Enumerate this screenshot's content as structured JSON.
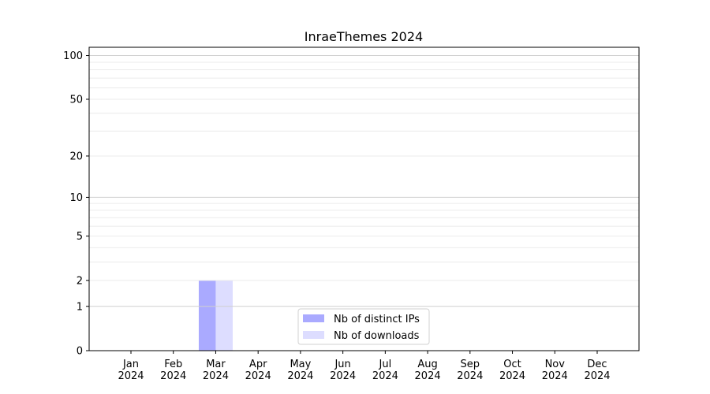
{
  "chart_data": {
    "type": "bar",
    "title": "InraeThemes 2024",
    "xlabel": "",
    "ylabel": "",
    "yscale": "log(1+y)",
    "ylim": [
      0,
      114
    ],
    "yticks": [
      0,
      1,
      2,
      5,
      10,
      20,
      50,
      100
    ],
    "grid": true,
    "legend_position": "lower-center",
    "categories": [
      "Jan\n2024",
      "Feb\n2024",
      "Mar\n2024",
      "Apr\n2024",
      "May\n2024",
      "Jun\n2024",
      "Jul\n2024",
      "Aug\n2024",
      "Sep\n2024",
      "Oct\n2024",
      "Nov\n2024",
      "Dec\n2024"
    ],
    "series": [
      {
        "name": "Nb of distinct IPs",
        "color": "#aaaaff",
        "values": [
          0,
          0,
          2,
          0,
          0,
          0,
          0,
          0,
          0,
          0,
          0,
          0
        ]
      },
      {
        "name": "Nb of downloads",
        "color": "#ddddff",
        "values": [
          0,
          0,
          2,
          0,
          0,
          0,
          0,
          0,
          0,
          0,
          0,
          0
        ]
      }
    ]
  }
}
